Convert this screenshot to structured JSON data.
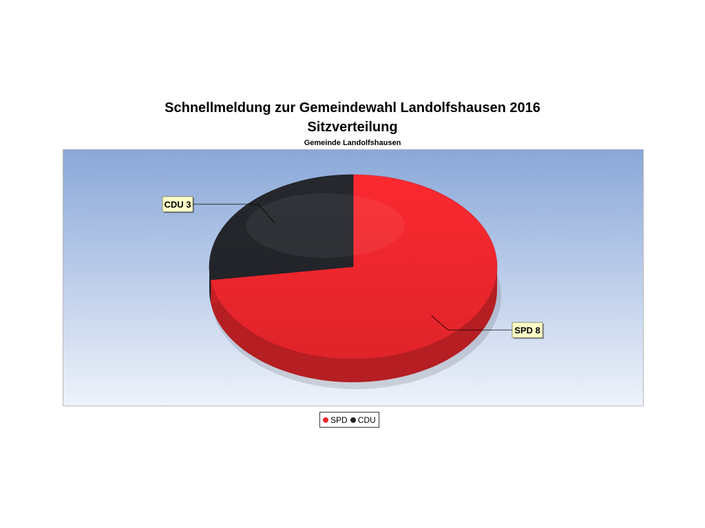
{
  "chart_data": {
    "type": "pie",
    "title": "Schnellmeldung zur Gemeindewahl Landolfshausen 2016",
    "subtitle": "Sitzverteilung",
    "subtitle2": "Gemeinde Landolfshausen",
    "series": [
      {
        "name": "SPD",
        "value": 8,
        "label": "SPD 8",
        "color": "#e8262c"
      },
      {
        "name": "CDU",
        "value": 3,
        "label": "CDU 3",
        "color": "#23252b"
      }
    ],
    "legend": {
      "placement": "bottom",
      "items": [
        "SPD",
        "CDU"
      ]
    },
    "three_d": true
  }
}
